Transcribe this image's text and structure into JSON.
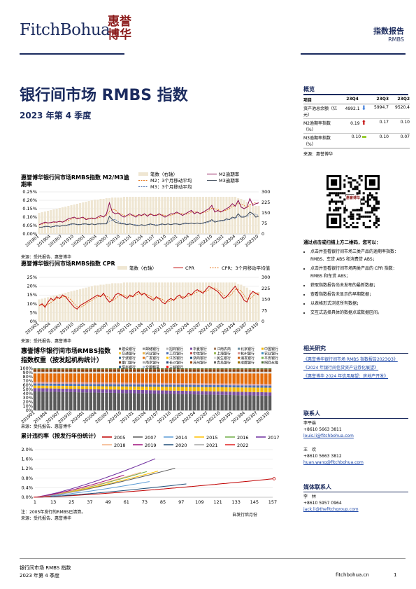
{
  "header": {
    "logo_text": "FitchBohua",
    "seal_chars": [
      "惠",
      "誉",
      "博",
      "华"
    ],
    "report_type": "指数报告",
    "report_sub": "RMBS"
  },
  "title": "银行间市场 RMBS 指数",
  "subtitle": "2023 年第 4 季度",
  "overview": {
    "title": "概览",
    "headers": [
      "项目",
      "23Q4",
      "23Q3",
      "23Q2"
    ],
    "rows": [
      {
        "label": "资产池总余额（亿元）",
        "q4": "4992.1",
        "trend": "down",
        "q3": "5994.7",
        "q2": "9520.4"
      },
      {
        "label": "M2逾期率指数（%）",
        "q4": "0.19",
        "trend": "up",
        "q3": "0.17",
        "q2": "0.10"
      },
      {
        "label": "M3逾期率指数（%）",
        "q4": "0.10",
        "trend": "flat",
        "q3": "0.10",
        "q2": "0.07"
      }
    ],
    "source": "来源：惠誉博华"
  },
  "qr": {
    "center_text": "惠誉博华"
  },
  "scan": {
    "title": "通过点击或扫描上方二维码，您可以：",
    "items": [
      "点击并查看银行间市场三类产品的逾期率指数：RMBS、车贷 ABS 和消费贷 ABS；",
      "点击并查看银行间市场两类产品的 CPR 指数：RMBS 和车贷 ABS；",
      "获取指数报告尚未发布的最新数据；",
      "查看指数报告未显示的早期数据；",
      "以表格形式浏览所有数据；",
      "交互式选择具体的数据点或数据区间。"
    ]
  },
  "related": {
    "title": "相关研究",
    "links": [
      "《惠誉博华银行间市场 RMBS 指数报告2023Q3》",
      "《2024 年银行间信贷资产证券化展望》",
      "《惠誉博华 2024 年信用展望：房地产开发》"
    ]
  },
  "contacts": {
    "title": "联系人",
    "people": [
      {
        "name": "李平燊",
        "phone": "+8610 5663 3811",
        "email": "louis.li@fitchbohua.com"
      },
      {
        "name": "王　欢",
        "phone": "+8610 5663 3812",
        "email": "huan.wang@fitchbohua.com"
      }
    ]
  },
  "media": {
    "title": "媒体联系人",
    "people": [
      {
        "name": "李　林",
        "phone": "+8610 5957 0964",
        "email": "jack.li@thefitchgroup.com"
      }
    ]
  },
  "footer": {
    "left1": "银行间市场 RMBS 指数",
    "left2": "2023 年第 4 季度",
    "site": "fitchbohua.cn",
    "page": "1"
  },
  "chart_data": [
    {
      "type": "line",
      "title": "惠誉博华银行间市场RMBS指数 M2/M3逾期率",
      "legend": [
        "笔数（右轴）",
        "M2逾期率",
        "M2：3个月移动平均",
        "M3逾期率",
        "M3：3个月移动平均"
      ],
      "x_ticks": [
        "201901",
        "201904",
        "201907",
        "201910",
        "202001",
        "202004",
        "202007",
        "202010",
        "202101",
        "202104",
        "202107",
        "202110",
        "202201",
        "202204",
        "202207",
        "202210",
        "202301",
        "202304",
        "202307",
        "202310"
      ],
      "y_ticks": [
        "0.25%",
        "0.20%",
        "0.15%",
        "0.10%",
        "0.05%",
        "0.00%"
      ],
      "y2_ticks": [
        "300",
        "225",
        "150",
        "75",
        "0"
      ],
      "ylim": [
        0,
        0.25
      ],
      "y2lim": [
        0,
        300
      ],
      "series": [
        {
          "name": "M2逾期率",
          "color": "#8b0a50",
          "values": [
            0.055,
            0.062,
            0.07,
            0.065,
            0.068,
            0.072,
            0.07,
            0.075,
            0.07,
            0.08,
            0.09,
            0.095,
            0.1,
            0.09,
            0.095,
            0.1,
            0.085,
            0.09,
            0.095,
            0.09,
            0.1,
            0.11,
            0.1,
            0.12,
            0.185,
            0.13,
            0.12,
            0.125,
            0.11,
            0.1,
            0.11,
            0.12,
            0.11,
            0.1,
            0.115,
            0.11,
            0.12,
            0.105,
            0.12,
            0.11,
            0.11,
            0.12,
            0.11,
            0.1,
            0.11,
            0.12,
            0.12,
            0.13,
            0.12,
            0.11,
            0.12,
            0.13,
            0.14,
            0.12,
            0.13,
            0.12,
            0.13,
            0.14,
            0.15,
            0.17,
            0.13,
            0.14,
            0.13,
            0.14,
            0.15,
            0.16,
            0.18,
            0.165,
            0.2,
            0.16,
            0.15,
            0.16,
            0.21,
            0.17,
            0.18,
            0.185
          ]
        },
        {
          "name": "M3逾期率",
          "color": "#3f4a5a",
          "values": [
            0.04,
            0.04,
            0.045,
            0.045,
            0.04,
            0.045,
            0.05,
            0.045,
            0.05,
            0.05,
            0.055,
            0.06,
            0.06,
            0.055,
            0.055,
            0.06,
            0.06,
            0.055,
            0.06,
            0.055,
            0.06,
            0.06,
            0.06,
            0.06,
            0.105,
            0.085,
            0.07,
            0.065,
            0.06,
            0.06,
            0.055,
            0.06,
            0.055,
            0.05,
            0.05,
            0.055,
            0.05,
            0.055,
            0.06,
            0.055,
            0.05,
            0.055,
            0.06,
            0.055,
            0.06,
            0.055,
            0.06,
            0.06,
            0.055,
            0.06,
            0.065,
            0.06,
            0.065,
            0.06,
            0.065,
            0.06,
            0.065,
            0.07,
            0.075,
            0.085,
            0.07,
            0.075,
            0.08,
            0.08,
            0.09,
            0.085,
            0.1,
            0.095,
            0.12,
            0.1,
            0.1,
            0.11,
            0.13,
            0.12,
            0.1,
            0.105
          ]
        },
        {
          "name": "笔数（右轴）",
          "color": "#efe6d2",
          "values": [
            150,
            155,
            160,
            165,
            170,
            175,
            180,
            185,
            190,
            195,
            200,
            205,
            210,
            215,
            220,
            225,
            230,
            235,
            240,
            245,
            245,
            250,
            250,
            255,
            255,
            260,
            260,
            260,
            260,
            265,
            265,
            265,
            265,
            265,
            265,
            265,
            265,
            265,
            265,
            265,
            265,
            265,
            265,
            265,
            265,
            265,
            265,
            265,
            265,
            265,
            265,
            265,
            265,
            265,
            265,
            265,
            265,
            265,
            265,
            265,
            265,
            265,
            265,
            265,
            265,
            265,
            265,
            265,
            255,
            250,
            240,
            230,
            215,
            205,
            200,
            200
          ]
        }
      ]
    },
    {
      "type": "line",
      "title": "惠誉博华银行间市场RMBS指数 CPR",
      "legend": [
        "笔数（右轴）",
        "CPR",
        "CPR：3个月移动平均值"
      ],
      "x_ticks": [
        "201901",
        "201904",
        "201907",
        "201910",
        "202001",
        "202004",
        "202007",
        "202010",
        "202101",
        "202104",
        "202107",
        "202110",
        "202201",
        "202204",
        "202207",
        "202210",
        "202301",
        "202304",
        "202307",
        "202310"
      ],
      "y_ticks": [
        "25%",
        "20%",
        "15%",
        "10%",
        "5%",
        "0%"
      ],
      "y2_ticks": [
        "300",
        "225",
        "150",
        "75",
        "0"
      ],
      "ylim": [
        0,
        25
      ],
      "y2lim": [
        0,
        300
      ],
      "series": [
        {
          "name": "CPR",
          "color": "#c00000",
          "values": [
            9,
            10,
            8,
            11,
            13,
            12,
            14,
            13,
            15,
            14,
            12,
            10,
            8,
            7,
            9,
            10,
            11,
            12,
            13,
            14,
            15,
            14,
            16,
            13,
            11,
            12,
            15,
            16,
            15,
            14,
            13,
            15,
            14,
            16,
            17,
            15,
            16,
            14,
            13,
            12,
            14,
            13,
            11,
            10,
            12,
            13,
            12,
            14,
            15,
            13,
            14,
            16,
            15,
            17,
            18,
            17,
            16,
            18,
            20,
            19,
            18,
            17,
            15,
            13,
            14,
            16,
            18,
            20,
            17,
            15,
            12,
            11,
            15,
            17,
            16,
            15
          ]
        }
      ]
    },
    {
      "type": "bar",
      "title": "惠誉博华银行间市场RMBS指数 指数权重（按发起机构统计）",
      "stacked": true,
      "legend": [
        "建设银行",
        "邮储银行",
        "招商银行",
        "华夏银行",
        "江南农商",
        "北京银行",
        "中国银行",
        "交通银行",
        "兴业银行",
        "工商银行",
        "中信银行",
        "上海银行",
        "杭州银行",
        "农业银行",
        "宁波银行",
        "广发银行",
        "江苏银行",
        "浙商银行",
        "民生银行",
        "浦发银行",
        "平安银行",
        "厦门银行",
        "南京银行",
        "长沙银行",
        "苏州银行",
        "青岛银行",
        "成都银行",
        "招商永隆",
        "恒丰银行",
        "交银租赁",
        "三峡银行"
      ],
      "y_ticks": [
        "100%",
        "90%",
        "80%",
        "70%",
        "60%",
        "50%",
        "40%",
        "30%",
        "20%",
        "10%",
        "0%"
      ],
      "x_ticks": [
        "201901",
        "201904",
        "201907",
        "201910",
        "202001",
        "202004",
        "202007",
        "202010",
        "202101",
        "202104",
        "202107",
        "202110",
        "202201",
        "202204",
        "202207",
        "202210",
        "202301",
        "202304",
        "202307",
        "202310"
      ]
    },
    {
      "type": "line",
      "title": "累计违约率（按发行年份统计）",
      "legend": [
        "2005",
        "2007",
        "2014",
        "2015",
        "2016",
        "2017",
        "2018",
        "2019",
        "2020",
        "2021",
        "2022"
      ],
      "x_ticks": [
        "1",
        "13",
        "25",
        "37",
        "49",
        "61",
        "73",
        "85",
        "97",
        "109",
        "121",
        "133",
        "145",
        "157"
      ],
      "y_ticks": [
        "2.0%",
        "1.6%",
        "1.2%",
        "0.8%",
        "0.4%",
        "0.0%"
      ],
      "ylim": [
        0,
        2.0
      ],
      "notes": [
        "注：2005年发行的RMBS已清算。",
        "来源：受托报告、惠誉博华"
      ],
      "right_note": "自发行后月份"
    }
  ],
  "chart_sources": {
    "c1": "来源：受托报告、惠誉博华",
    "c3": "来源：受托报告、惠誉博华"
  }
}
